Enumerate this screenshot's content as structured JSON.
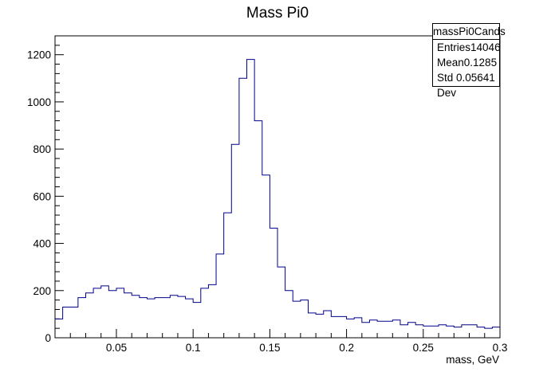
{
  "chart_data": {
    "type": "histogram",
    "title": "Mass Pi0",
    "xlabel": "mass, GeV",
    "ylabel": "",
    "xlim": [
      0.01,
      0.3
    ],
    "ylim": [
      0,
      1280
    ],
    "xticks": [
      0.05,
      0.1,
      0.15,
      0.2,
      0.25,
      0.3
    ],
    "yticks": [
      0,
      200,
      400,
      600,
      800,
      1000,
      1200
    ],
    "xtick_labels": [
      "0.05",
      "0.1",
      "0.15",
      "0.2",
      "0.25",
      "0.3"
    ],
    "ytick_labels": [
      "0",
      "200",
      "400",
      "600",
      "800",
      "1000",
      "1200"
    ],
    "line_color": "#00008b",
    "bins": {
      "edges_start": 0.01,
      "bin_width": 0.005,
      "values": [
        80,
        130,
        130,
        170,
        190,
        210,
        220,
        200,
        210,
        190,
        180,
        170,
        165,
        170,
        170,
        180,
        175,
        165,
        150,
        210,
        225,
        355,
        530,
        820,
        1100,
        1180,
        920,
        690,
        465,
        300,
        200,
        155,
        160,
        105,
        100,
        115,
        90,
        90,
        80,
        85,
        65,
        75,
        70,
        70,
        75,
        55,
        65,
        55,
        50,
        50,
        55,
        50,
        45,
        55,
        55,
        45,
        40,
        45
      ]
    },
    "stats": {
      "name": "massPi0Cands",
      "entries_label": "Entries",
      "entries": "14046",
      "mean_label": "Mean",
      "mean": "0.1285",
      "std_label": "Std Dev",
      "std": "0.05641"
    }
  }
}
